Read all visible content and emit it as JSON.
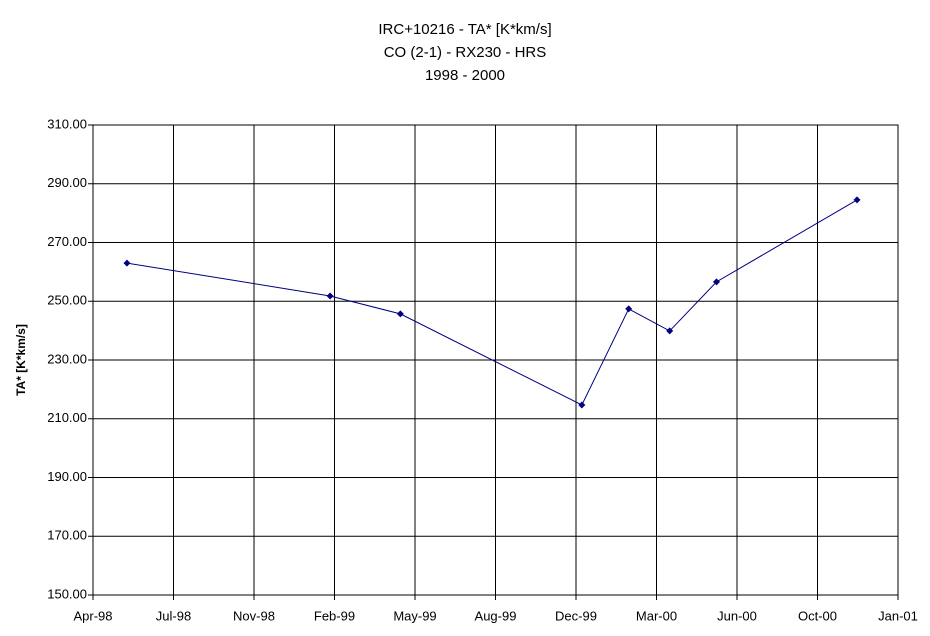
{
  "chart_data": {
    "type": "line",
    "title": [
      "IRC+10216 - TA* [K*km/s]",
      "CO (2-1) - RX230 - HRS",
      "1998 - 2000"
    ],
    "y_label": "TA* [K*km/s]",
    "x": [
      1998.366,
      1999.06,
      1999.3,
      1999.92,
      2000.08,
      2000.22,
      2000.38,
      2000.86
    ],
    "series": [
      {
        "color": "#000080",
        "values": [
          263.0,
          251.8,
          245.7,
          214.7,
          247.4,
          239.9,
          256.6,
          284.5
        ]
      }
    ],
    "xlim": [
      1998.25,
      2001.0
    ],
    "xticks": [
      {
        "value": 1998.25,
        "label": "Apr-98"
      },
      {
        "value": 1998.525,
        "label": "Jul-98"
      },
      {
        "value": 1998.8,
        "label": "Nov-98"
      },
      {
        "value": 1999.075,
        "label": "Feb-99"
      },
      {
        "value": 1999.35,
        "label": "May-99"
      },
      {
        "value": 1999.625,
        "label": "Aug-99"
      },
      {
        "value": 1999.9,
        "label": "Dec-99"
      },
      {
        "value": 2000.175,
        "label": "Mar-00"
      },
      {
        "value": 2000.45,
        "label": "Jun-00"
      },
      {
        "value": 2000.725,
        "label": "Oct-00"
      },
      {
        "value": 2001.0,
        "label": "Jan-01"
      }
    ],
    "ylim": [
      150,
      310
    ],
    "yticks": [
      {
        "value": 150,
        "label": "150.00"
      },
      {
        "value": 170,
        "label": "170.00"
      },
      {
        "value": 190,
        "label": "190.00"
      },
      {
        "value": 210,
        "label": "210.00"
      },
      {
        "value": 230,
        "label": "230.00"
      },
      {
        "value": 250,
        "label": "250.00"
      },
      {
        "value": 270,
        "label": "270.00"
      },
      {
        "value": 290,
        "label": "290.00"
      },
      {
        "value": 310,
        "label": "310.00"
      }
    ],
    "grid": true
  }
}
